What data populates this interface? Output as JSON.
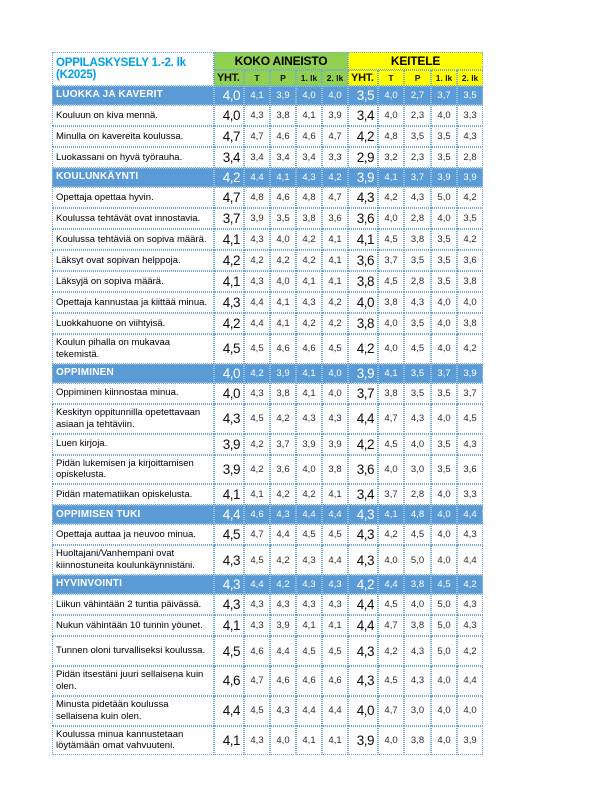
{
  "title": "OPPILASKYSELY 1.-2. lk (K2025)",
  "groups": [
    {
      "label": "KOKO AINEISTO",
      "color": "#92d050"
    },
    {
      "label": "KEITELE",
      "color": "#ffff00"
    }
  ],
  "columns": [
    "YHT.",
    "T",
    "P",
    "1. lk",
    "2. lk"
  ],
  "colors": {
    "section_blue": "#5b9bd5",
    "title_blue": "#00a0e6",
    "border_blue": "#6fa8dc"
  },
  "rows": [
    {
      "type": "section",
      "label": "LUOKKA JA KAVERIT",
      "koko": [
        "4,0",
        "4,1",
        "3,9",
        "4,0",
        "4,0"
      ],
      "keitele": [
        "3,5",
        "4,0",
        "2,7",
        "3,7",
        "3,5"
      ]
    },
    {
      "type": "item",
      "label": "Kouluun on kiva mennä.",
      "koko": [
        "4,0",
        "4,3",
        "3,8",
        "4,1",
        "3,9"
      ],
      "keitele": [
        "3,4",
        "4,0",
        "2,3",
        "4,0",
        "3,3"
      ]
    },
    {
      "type": "item",
      "label": "Minulla on kavereita koulussa.",
      "koko": [
        "4,7",
        "4,7",
        "4,6",
        "4,6",
        "4,7"
      ],
      "keitele": [
        "4,2",
        "4,8",
        "3,5",
        "3,5",
        "4,3"
      ]
    },
    {
      "type": "item",
      "label": "Luokassani on hyvä työrauha.",
      "koko": [
        "3,4",
        "3,4",
        "3,4",
        "3,4",
        "3,3"
      ],
      "keitele": [
        "2,9",
        "3,2",
        "2,3",
        "3,5",
        "2,8"
      ]
    },
    {
      "type": "section",
      "label": "KOULUNKÄYNTI",
      "koko": [
        "4,2",
        "4,4",
        "4,1",
        "4,3",
        "4,2"
      ],
      "keitele": [
        "3,9",
        "4,1",
        "3,7",
        "3,9",
        "3,9"
      ]
    },
    {
      "type": "item",
      "label": "Opettaja opettaa hyvin.",
      "koko": [
        "4,7",
        "4,8",
        "4,6",
        "4,8",
        "4,7"
      ],
      "keitele": [
        "4,3",
        "4,2",
        "4,3",
        "5,0",
        "4,2"
      ]
    },
    {
      "type": "item",
      "label": "Koulussa tehtävät ovat innostavia.",
      "koko": [
        "3,7",
        "3,9",
        "3,5",
        "3,8",
        "3,6"
      ],
      "keitele": [
        "3,6",
        "4,0",
        "2,8",
        "4,0",
        "3,5"
      ]
    },
    {
      "type": "item",
      "label": "Koulussa tehtäviä on sopiva määrä.",
      "koko": [
        "4,1",
        "4,3",
        "4,0",
        "4,2",
        "4,1"
      ],
      "keitele": [
        "4,1",
        "4,5",
        "3,8",
        "3,5",
        "4,2"
      ]
    },
    {
      "type": "item",
      "label": "Läksyt ovat sopivan helppoja.",
      "koko": [
        "4,2",
        "4,2",
        "4,2",
        "4,2",
        "4,1"
      ],
      "keitele": [
        "3,6",
        "3,7",
        "3,5",
        "3,5",
        "3,6"
      ]
    },
    {
      "type": "item",
      "label": "Läksyjä on sopiva määrä.",
      "koko": [
        "4,1",
        "4,3",
        "4,0",
        "4,1",
        "4,1"
      ],
      "keitele": [
        "3,8",
        "4,5",
        "2,8",
        "3,5",
        "3,8"
      ]
    },
    {
      "type": "item",
      "label": "Opettaja kannustaa ja kiittää minua.",
      "koko": [
        "4,3",
        "4,4",
        "4,1",
        "4,3",
        "4,2"
      ],
      "keitele": [
        "4,0",
        "3,8",
        "4,3",
        "4,0",
        "4,0"
      ]
    },
    {
      "type": "item",
      "label": "Luokkahuone on viihtyisä.",
      "koko": [
        "4,2",
        "4,4",
        "4,1",
        "4,2",
        "4,2"
      ],
      "keitele": [
        "3,8",
        "4,0",
        "3,5",
        "4,0",
        "3,8"
      ]
    },
    {
      "type": "item",
      "label": "Koulun pihalla on mukavaa tekemistä.",
      "koko": [
        "4,5",
        "4,5",
        "4,6",
        "4,6",
        "4,5"
      ],
      "keitele": [
        "4,2",
        "4,0",
        "4,5",
        "4,0",
        "4,2"
      ]
    },
    {
      "type": "section",
      "label": "OPPIMINEN",
      "koko": [
        "4,0",
        "4,2",
        "3,9",
        "4,1",
        "4,0"
      ],
      "keitele": [
        "3,9",
        "4,1",
        "3,5",
        "3,7",
        "3,9"
      ]
    },
    {
      "type": "item",
      "label": "Oppiminen kiinnostaa minua.",
      "koko": [
        "4,0",
        "4,3",
        "3,8",
        "4,1",
        "4,0"
      ],
      "keitele": [
        "3,7",
        "3,8",
        "3,5",
        "3,5",
        "3,7"
      ]
    },
    {
      "type": "item",
      "label": "Keskityn oppitunnilla opetettavaan asiaan ja tehtäviin.",
      "koko": [
        "4,3",
        "4,5",
        "4,2",
        "4,3",
        "4,3"
      ],
      "keitele": [
        "4,4",
        "4,7",
        "4,3",
        "4,0",
        "4,5"
      ]
    },
    {
      "type": "item",
      "label": "Luen kirjoja.",
      "koko": [
        "3,9",
        "4,2",
        "3,7",
        "3,9",
        "3,9"
      ],
      "keitele": [
        "4,2",
        "4,5",
        "4,0",
        "3,5",
        "4,3"
      ]
    },
    {
      "type": "item",
      "label": "Pidän lukemisen ja kirjoittamisen opiskelusta.",
      "koko": [
        "3,9",
        "4,2",
        "3,6",
        "4,0",
        "3,8"
      ],
      "keitele": [
        "3,6",
        "4,0",
        "3,0",
        "3,5",
        "3,6"
      ]
    },
    {
      "type": "item",
      "label": "Pidän matematiikan opiskelusta.",
      "koko": [
        "4,1",
        "4,1",
        "4,2",
        "4,2",
        "4,1"
      ],
      "keitele": [
        "3,4",
        "3,7",
        "2,8",
        "4,0",
        "3,3"
      ]
    },
    {
      "type": "section",
      "label": "OPPIMISEN TUKI",
      "koko": [
        "4,4",
        "4,6",
        "4,3",
        "4,4",
        "4,4"
      ],
      "keitele": [
        "4,3",
        "4,1",
        "4,8",
        "4,0",
        "4,4"
      ]
    },
    {
      "type": "item",
      "label": "Opettaja auttaa ja neuvoo minua.",
      "koko": [
        "4,5",
        "4,7",
        "4,4",
        "4,5",
        "4,5"
      ],
      "keitele": [
        "4,3",
        "4,2",
        "4,5",
        "4,0",
        "4,3"
      ]
    },
    {
      "type": "item",
      "label": "Huoltajani/Vanhempani ovat kiinnostuneita koulunkäynnistäni.",
      "koko": [
        "4,3",
        "4,5",
        "4,2",
        "4,3",
        "4,4"
      ],
      "keitele": [
        "4,3",
        "4,0",
        "5,0",
        "4,0",
        "4,4"
      ]
    },
    {
      "type": "section",
      "label": "HYVINVOINTI",
      "koko": [
        "4,3",
        "4,4",
        "4,2",
        "4,3",
        "4,3"
      ],
      "keitele": [
        "4,2",
        "4,4",
        "3,8",
        "4,5",
        "4,2"
      ]
    },
    {
      "type": "item",
      "label": "Liikun vähintään 2 tuntia päivässä.",
      "koko": [
        "4,3",
        "4,3",
        "4,3",
        "4,3",
        "4,3"
      ],
      "keitele": [
        "4,4",
        "4,5",
        "4,0",
        "5,0",
        "4,3"
      ]
    },
    {
      "type": "item",
      "label": "Nukun vähintään 10 tunnin yöunet.",
      "koko": [
        "4,1",
        "4,3",
        "3,9",
        "4,1",
        "4,1"
      ],
      "keitele": [
        "4,4",
        "4,7",
        "3,8",
        "5,0",
        "4,3"
      ]
    },
    {
      "type": "item",
      "label": "Tunnen oloni turvalliseksi koulussa.",
      "tall": true,
      "koko": [
        "4,5",
        "4,6",
        "4,4",
        "4,5",
        "4,5"
      ],
      "keitele": [
        "4,3",
        "4,2",
        "4,3",
        "5,0",
        "4,2"
      ]
    },
    {
      "type": "item",
      "label": "Pidän itsestäni juuri sellaisena kuin olen.",
      "koko": [
        "4,6",
        "4,7",
        "4,6",
        "4,6",
        "4,6"
      ],
      "keitele": [
        "4,3",
        "4,5",
        "4,3",
        "4,0",
        "4,4"
      ]
    },
    {
      "type": "item",
      "label": "Minusta pidetään koulussa sellaisena kuin olen.",
      "koko": [
        "4,4",
        "4,5",
        "4,3",
        "4,4",
        "4,4"
      ],
      "keitele": [
        "4,0",
        "4,7",
        "3,0",
        "4,0",
        "4,0"
      ]
    },
    {
      "type": "item",
      "label": "Koulussa minua kannustetaan löytämään omat vahvuuteni.",
      "koko": [
        "4,1",
        "4,3",
        "4,0",
        "4,1",
        "4,1"
      ],
      "keitele": [
        "3,9",
        "4,0",
        "3,8",
        "4,0",
        "3,9"
      ]
    }
  ]
}
